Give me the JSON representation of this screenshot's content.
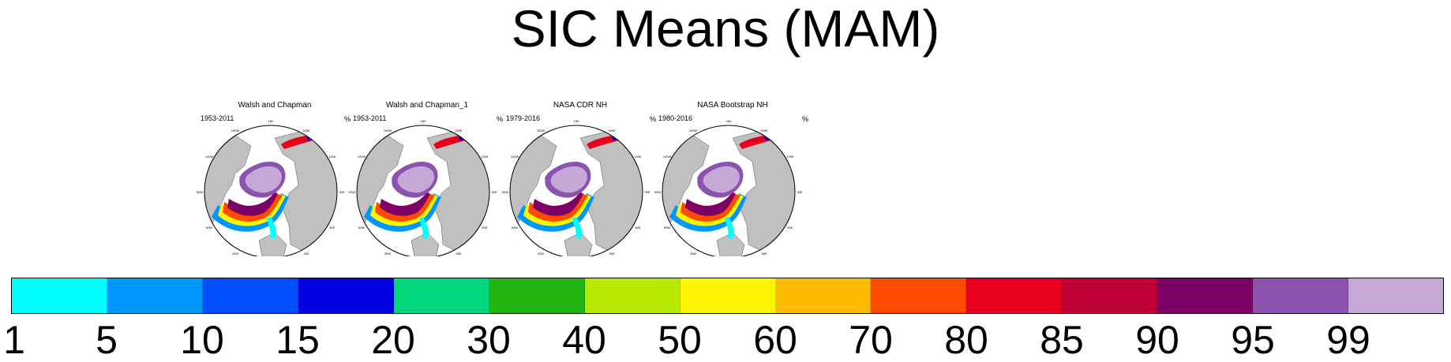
{
  "title": "SIC Means (MAM)",
  "panels": [
    {
      "title": "Walsh and Chapman",
      "period": "1953-2011",
      "units": "%"
    },
    {
      "title": "Walsh and Chapman_1",
      "period": "1953-2011",
      "units": "%"
    },
    {
      "title": "NASA CDR NH",
      "period": "1979-2016",
      "units": "%"
    },
    {
      "title": "NASA Bootstrap NH",
      "period": "1980-2016",
      "units": "%"
    }
  ],
  "map_longitude_labels": [
    "180",
    "150E",
    "120E",
    "90E",
    "60E",
    "30E",
    "0",
    "30W",
    "60W",
    "90W",
    "120W",
    "150W"
  ],
  "colors": {
    "land": "#c0c0c0",
    "ocean": "#ffffff",
    "ice_core": "#c6a8d8"
  },
  "colorbar": {
    "colors": [
      "#00ffff",
      "#0096ff",
      "#0050ff",
      "#0000e1",
      "#00d77d",
      "#21b611",
      "#b7e800",
      "#fff500",
      "#ffb900",
      "#ff4b00",
      "#e6001c",
      "#bf0034",
      "#7f0064",
      "#8b52ae",
      "#c6a8d8"
    ],
    "labels": [
      "1",
      "5",
      "10",
      "15",
      "20",
      "30",
      "40",
      "50",
      "60",
      "70",
      "80",
      "85",
      "90",
      "95",
      "99"
    ]
  }
}
